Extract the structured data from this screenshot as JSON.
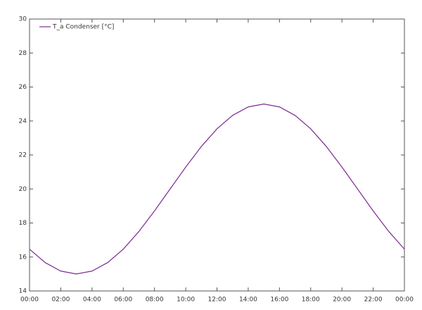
{
  "chart_data": {
    "type": "line",
    "x": [
      0,
      1,
      2,
      3,
      4,
      5,
      6,
      7,
      8,
      9,
      10,
      11,
      12,
      13,
      14,
      15,
      16,
      17,
      18,
      19,
      20,
      21,
      22,
      23,
      24
    ],
    "series": [
      {
        "name": "T_a Condenser [°C]",
        "color": "#7b2d8e",
        "values": [
          16.46,
          15.67,
          15.17,
          15.0,
          15.17,
          15.67,
          16.46,
          17.5,
          18.71,
          20.0,
          21.29,
          22.5,
          23.54,
          24.33,
          24.83,
          25.0,
          24.83,
          24.33,
          23.54,
          22.5,
          21.29,
          20.0,
          18.71,
          17.5,
          16.46
        ]
      }
    ],
    "xlim": [
      0,
      24
    ],
    "xticks": [
      {
        "value": 0,
        "label": "00:00"
      },
      {
        "value": 2,
        "label": "02:00"
      },
      {
        "value": 4,
        "label": "04:00"
      },
      {
        "value": 6,
        "label": "06:00"
      },
      {
        "value": 8,
        "label": "08:00"
      },
      {
        "value": 10,
        "label": "10:00"
      },
      {
        "value": 12,
        "label": "12:00"
      },
      {
        "value": 14,
        "label": "14:00"
      },
      {
        "value": 16,
        "label": "16:00"
      },
      {
        "value": 18,
        "label": "18:00"
      },
      {
        "value": 20,
        "label": "20:00"
      },
      {
        "value": 22,
        "label": "22:00"
      },
      {
        "value": 24,
        "label": "00:00"
      }
    ],
    "ylim": [
      14,
      30
    ],
    "yticks": [
      14,
      16,
      18,
      20,
      22,
      24,
      26,
      28,
      30
    ],
    "legend": "top-left"
  }
}
